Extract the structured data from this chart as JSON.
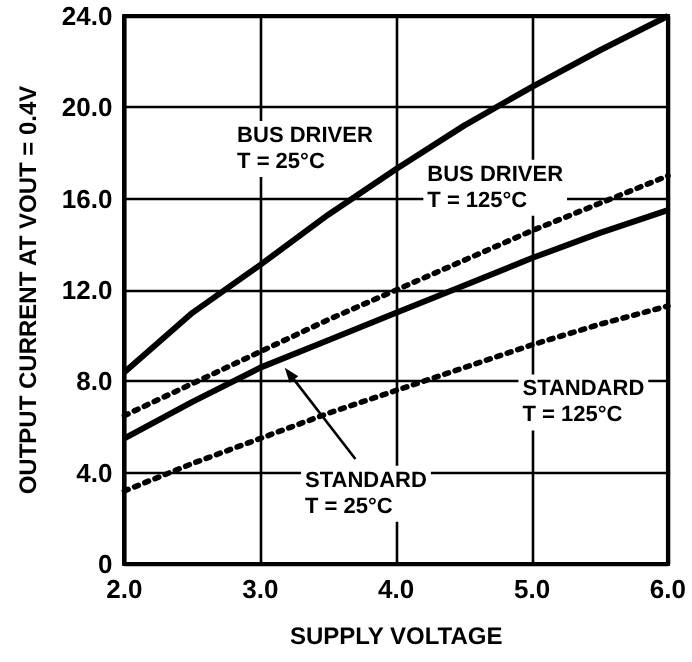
{
  "chart_data": {
    "type": "line",
    "xlabel": "SUPPLY VOLTAGE",
    "ylabel": "OUTPUT CURRENT AT VOUT = 0.4V",
    "x": [
      2.0,
      2.5,
      3.0,
      3.5,
      4.0,
      4.5,
      5.0,
      5.5,
      6.0
    ],
    "series": [
      {
        "name": "BUS DRIVER\nT = 25°C",
        "color": "#000000",
        "line_style": "solid",
        "values": [
          8.4,
          11.0,
          13.1,
          15.3,
          17.3,
          19.2,
          20.9,
          22.5,
          24.0
        ]
      },
      {
        "name": "BUS DRIVER\nT = 125°C",
        "color": "#000000",
        "line_style": "dotted",
        "values": [
          6.5,
          7.9,
          9.3,
          10.7,
          12.0,
          13.3,
          14.6,
          15.8,
          17.0
        ]
      },
      {
        "name": "STANDARD\nT = 25°C",
        "color": "#000000",
        "line_style": "solid",
        "values": [
          5.5,
          7.1,
          8.6,
          9.8,
          11.0,
          12.2,
          13.4,
          14.5,
          15.5
        ]
      },
      {
        "name": "STANDARD\nT = 125°C",
        "color": "#000000",
        "line_style": "dotted",
        "values": [
          3.2,
          4.4,
          5.5,
          6.6,
          7.6,
          8.6,
          9.6,
          10.5,
          11.3
        ]
      }
    ],
    "xlim": [
      2.0,
      6.0
    ],
    "xticks": [
      {
        "value": 2,
        "label": "2.0"
      },
      {
        "value": 3,
        "label": "3.0"
      },
      {
        "value": 4,
        "label": "4.0"
      },
      {
        "value": 5,
        "label": "5.0"
      },
      {
        "value": 6,
        "label": "6.0"
      }
    ],
    "ylim": [
      0,
      24
    ],
    "yticks": [
      0,
      {
        "value": 4,
        "label": "4.0"
      },
      {
        "value": 8,
        "label": "8.0"
      },
      {
        "value": 12,
        "label": "12.0"
      },
      {
        "value": 16,
        "label": "16.0"
      },
      {
        "value": 20,
        "label": "20.0"
      },
      {
        "value": 24,
        "label": "24.0"
      }
    ],
    "grid": true,
    "legend": false,
    "marker": "none"
  }
}
